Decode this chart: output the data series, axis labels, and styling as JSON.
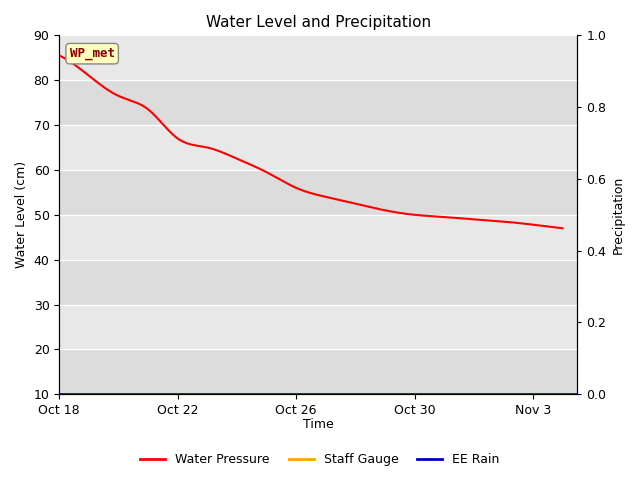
{
  "title": "Water Level and Precipitation",
  "xlabel": "Time",
  "ylabel_left": "Water Level (cm)",
  "ylabel_right": "Precipitation",
  "annotation_text": "WP_met",
  "annotation_color": "#8B0000",
  "annotation_bg": "#FFFFC0",
  "x_tick_labels": [
    "Oct 18",
    "Oct 22",
    "Oct 26",
    "Oct 30",
    "Nov 3"
  ],
  "x_tick_positions": [
    0,
    4,
    8,
    12,
    16
  ],
  "xlim": [
    0,
    17.5
  ],
  "ylim_left": [
    10,
    90
  ],
  "ylim_right": [
    0.0,
    1.0
  ],
  "yticks_left": [
    10,
    20,
    30,
    40,
    50,
    60,
    70,
    80,
    90
  ],
  "yticks_right": [
    0.0,
    0.2,
    0.4,
    0.6,
    0.8,
    1.0
  ],
  "band_colors": [
    "#DCDCDC",
    "#E8E8E8"
  ],
  "water_pressure_color": "#FF0000",
  "staff_gauge_color": "#FFA500",
  "ee_rain_color": "#0000BB",
  "legend_labels": [
    "Water Pressure",
    "Staff Gauge",
    "EE Rain"
  ],
  "legend_colors": [
    "#FF0000",
    "#FFA500",
    "#0000BB"
  ],
  "wp_x": [
    0,
    1,
    2,
    3,
    4,
    5,
    6,
    7,
    8,
    9,
    10,
    11,
    12,
    13,
    14,
    15,
    16,
    17
  ],
  "wp_y": [
    85.5,
    81.0,
    76.5,
    73.5,
    67.0,
    65.0,
    62.5,
    59.5,
    56.0,
    54.0,
    52.5,
    51.0,
    50.0,
    49.5,
    49.0,
    48.5,
    47.8,
    47.0
  ]
}
